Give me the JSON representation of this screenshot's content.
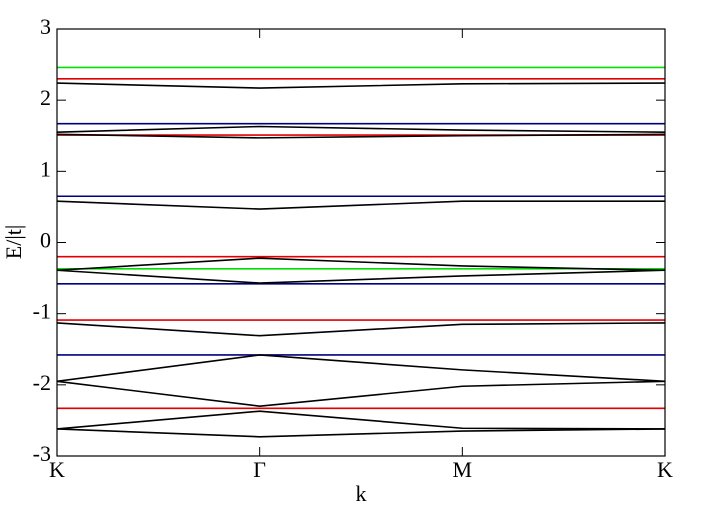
{
  "chart_data": {
    "type": "line",
    "x_label": "k",
    "y_label": "E/|t|",
    "x": [
      0,
      1,
      2,
      3
    ],
    "xlim": [
      0,
      3
    ],
    "xticks": [
      {
        "value": 0,
        "label": "K"
      },
      {
        "value": 1,
        "label": "Γ"
      },
      {
        "value": 2,
        "label": "M"
      },
      {
        "value": 3,
        "label": "K"
      }
    ],
    "ylim": [
      -3,
      3
    ],
    "yticks": [
      3,
      2,
      1,
      0,
      -1,
      -2,
      -3
    ],
    "series": [
      {
        "color": "#00e000",
        "values": [
          2.46,
          2.46,
          2.46,
          2.46
        ]
      },
      {
        "color": "#e00000",
        "values": [
          2.3,
          2.3,
          2.3,
          2.3
        ]
      },
      {
        "color": "#000080",
        "values": [
          1.67,
          1.67,
          1.67,
          1.67
        ]
      },
      {
        "color": "#e00000",
        "values": [
          1.51,
          1.51,
          1.51,
          1.51
        ]
      },
      {
        "color": "#000080",
        "values": [
          0.65,
          0.65,
          0.65,
          0.65
        ]
      },
      {
        "color": "#e00000",
        "values": [
          -0.2,
          -0.2,
          -0.2,
          -0.2
        ]
      },
      {
        "color": "#00e000",
        "values": [
          -0.37,
          -0.37,
          -0.37,
          -0.37
        ]
      },
      {
        "color": "#000080",
        "values": [
          -0.58,
          -0.58,
          -0.58,
          -0.58
        ]
      },
      {
        "color": "#e00000",
        "values": [
          -1.09,
          -1.09,
          -1.09,
          -1.09
        ]
      },
      {
        "color": "#000080",
        "values": [
          -1.58,
          -1.58,
          -1.58,
          -1.58
        ]
      },
      {
        "color": "#e00000",
        "values": [
          -2.33,
          -2.33,
          -2.33,
          -2.33
        ]
      },
      {
        "color": "#000000",
        "values": [
          2.24,
          2.17,
          2.23,
          2.24
        ]
      },
      {
        "color": "#000000",
        "values": [
          1.55,
          1.63,
          1.58,
          1.55
        ]
      },
      {
        "color": "#000000",
        "values": [
          1.52,
          1.47,
          1.5,
          1.52
        ]
      },
      {
        "color": "#000000",
        "values": [
          0.58,
          0.47,
          0.58,
          0.58
        ]
      },
      {
        "color": "#000000",
        "values": [
          -0.39,
          -0.22,
          -0.33,
          -0.39
        ]
      },
      {
        "color": "#000000",
        "values": [
          -0.39,
          -0.57,
          -0.47,
          -0.39
        ]
      },
      {
        "color": "#000000",
        "values": [
          -1.13,
          -1.31,
          -1.15,
          -1.13
        ]
      },
      {
        "color": "#000000",
        "values": [
          -1.95,
          -1.58,
          -1.79,
          -1.95
        ]
      },
      {
        "color": "#000000",
        "values": [
          -1.95,
          -2.3,
          -2.02,
          -1.95
        ]
      },
      {
        "color": "#000000",
        "values": [
          -2.62,
          -2.37,
          -2.61,
          -2.62
        ]
      },
      {
        "color": "#000000",
        "values": [
          -2.62,
          -2.73,
          -2.65,
          -2.62
        ]
      }
    ]
  }
}
